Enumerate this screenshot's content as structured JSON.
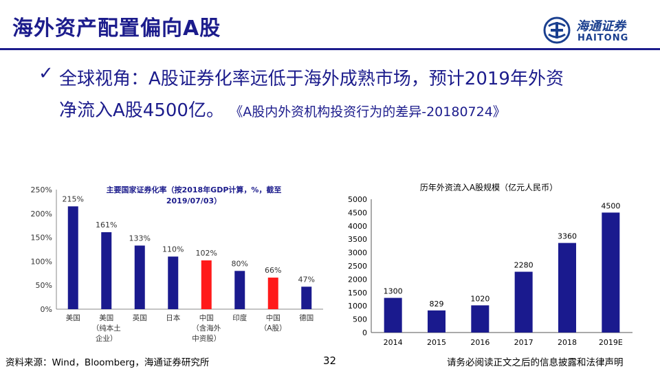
{
  "slide": {
    "title": "海外资产配置偏向A股",
    "logo": {
      "cn": "海通证券",
      "en": "HAITONG"
    },
    "bullet_icon": "checkmark-icon",
    "headline_line1": "全球视角：A股证券化率远低于海外成熟市场，预计2019年外资",
    "headline_line2": "净流入A股4500亿。",
    "headline_ref": "《A股内外资机构投资行为的差异-20180724》",
    "footer_source": "资料来源：Wind，Bloomberg，海通证券研究所",
    "page_number": "32",
    "footer_disclaimer": "请务必阅读正文之后的信息披露和法律声明"
  },
  "chart_data": [
    {
      "type": "bar",
      "title_line1": "主要国家证券化率（按2018年GDP计算，%，截至",
      "title_line2": "2019/07/03）",
      "categories": [
        [
          "美国"
        ],
        [
          "美国",
          "（纯本土",
          "企业）"
        ],
        [
          "英国"
        ],
        [
          "日本"
        ],
        [
          "中国",
          "（含海外",
          "中资股）"
        ],
        [
          "印度"
        ],
        [
          "中国",
          "（A股）"
        ],
        [
          "德国"
        ]
      ],
      "values": [
        215,
        161,
        133,
        110,
        102,
        80,
        66,
        47
      ],
      "value_labels": [
        "215%",
        "161%",
        "133%",
        "110%",
        "102%",
        "80%",
        "66%",
        "47%"
      ],
      "highlight": [
        false,
        false,
        false,
        false,
        true,
        false,
        true,
        false
      ],
      "ylim": [
        0,
        250
      ],
      "yticks": [
        "0%",
        "50%",
        "100%",
        "150%",
        "200%",
        "250%"
      ],
      "colors": {
        "bar": "#1a1a8e",
        "highlight": "#ff1a1a"
      }
    },
    {
      "type": "bar",
      "title": "历年外资流入A股规模（亿元人民币）",
      "categories": [
        "2014",
        "2015",
        "2016",
        "2017",
        "2018",
        "2019E"
      ],
      "values": [
        1300,
        829,
        1020,
        2280,
        3360,
        4500
      ],
      "value_labels": [
        "1300",
        "829",
        "1020",
        "2280",
        "3360",
        "4500"
      ],
      "ylim": [
        0,
        5000
      ],
      "yticks": [
        "0",
        "500",
        "1000",
        "1500",
        "2000",
        "2500",
        "3000",
        "3500",
        "4000",
        "4500",
        "5000"
      ],
      "colors": {
        "bar": "#1a1a8e"
      }
    }
  ]
}
